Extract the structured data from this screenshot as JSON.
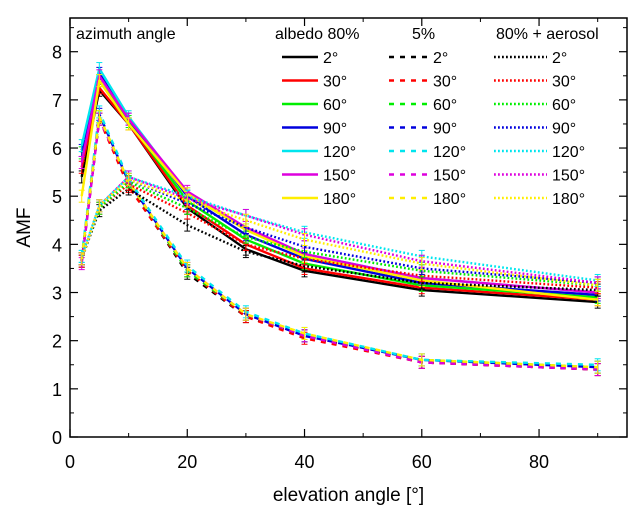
{
  "chart_data": {
    "type": "line",
    "xlabel": "elevation angle [°]",
    "ylabel": "AMF",
    "xlim": [
      0,
      95
    ],
    "ylim": [
      0,
      8.7
    ],
    "x_ticks": [
      0,
      20,
      40,
      60,
      80
    ],
    "y_ticks": [
      0,
      1,
      2,
      3,
      4,
      5,
      6,
      7,
      8
    ],
    "grid": false,
    "legend_placement": "top-right",
    "x": [
      2,
      5,
      10,
      20,
      30,
      40,
      60,
      90
    ],
    "legend": {
      "title": "azimuth angle",
      "group_headers": [
        "albedo 80%",
        "5%",
        "80% + aerosol"
      ],
      "azimuth_labels": [
        "2°",
        "30°",
        "60°",
        "90°",
        "120°",
        "150°",
        "180°"
      ]
    },
    "colors": [
      "#000000",
      "#ff0000",
      "#00ee00",
      "#0000dd",
      "#00e5ee",
      "#dd00dd",
      "#ffee00"
    ],
    "groups": [
      {
        "name": "albedo 80%",
        "line_style": "solid",
        "series": [
          {
            "name": "2°",
            "values": [
              5.4,
              7.2,
              6.5,
              4.75,
              3.9,
              3.45,
              3.05,
              2.8
            ]
          },
          {
            "name": "30°",
            "values": [
              5.6,
              7.25,
              6.5,
              4.8,
              4.0,
              3.5,
              3.1,
              2.85
            ]
          },
          {
            "name": "60°",
            "values": [
              5.9,
              7.4,
              6.55,
              4.9,
              4.1,
              3.6,
              3.15,
              2.9
            ]
          },
          {
            "name": "90°",
            "values": [
              5.95,
              7.55,
              6.6,
              5.0,
              4.2,
              3.7,
              3.2,
              2.95
            ]
          },
          {
            "name": "120°",
            "values": [
              6.05,
              7.65,
              6.65,
              5.05,
              4.3,
              3.8,
              3.3,
              3.0
            ]
          },
          {
            "name": "150°",
            "values": [
              5.7,
              7.5,
              6.6,
              5.1,
              4.35,
              3.8,
              3.3,
              3.0
            ]
          },
          {
            "name": "180°",
            "values": [
              5.0,
              7.4,
              6.5,
              5.05,
              4.3,
              3.75,
              3.25,
              2.85
            ]
          }
        ]
      },
      {
        "name": "5%",
        "line_style": "dashed",
        "series": [
          {
            "name": "2°",
            "values": [
              3.65,
              6.6,
              5.25,
              3.4,
              2.5,
              2.1,
              1.55,
              1.4
            ]
          },
          {
            "name": "30°",
            "values": [
              3.65,
              6.6,
              5.2,
              3.45,
              2.5,
              2.05,
              1.55,
              1.4
            ]
          },
          {
            "name": "60°",
            "values": [
              3.7,
              6.65,
              5.3,
              3.45,
              2.55,
              2.1,
              1.6,
              1.45
            ]
          },
          {
            "name": "90°",
            "values": [
              3.7,
              6.7,
              5.3,
              3.5,
              2.55,
              2.1,
              1.6,
              1.45
            ]
          },
          {
            "name": "120°",
            "values": [
              3.75,
              6.75,
              5.35,
              3.55,
              2.6,
              2.15,
              1.6,
              1.5
            ]
          },
          {
            "name": "150°",
            "values": [
              3.6,
              6.6,
              5.3,
              3.5,
              2.55,
              2.1,
              1.55,
              1.4
            ]
          },
          {
            "name": "180°",
            "values": [
              3.7,
              6.65,
              5.3,
              3.5,
              2.55,
              2.15,
              1.6,
              1.45
            ]
          }
        ]
      },
      {
        "name": "80% + aerosol",
        "line_style": "dotted",
        "series": [
          {
            "name": "2°",
            "values": [
              3.7,
              4.7,
              5.15,
              4.4,
              3.85,
              3.55,
              3.2,
              3.05
            ]
          },
          {
            "name": "30°",
            "values": [
              3.7,
              4.75,
              5.25,
              4.65,
              4.0,
              3.7,
              3.35,
              3.1
            ]
          },
          {
            "name": "60°",
            "values": [
              3.7,
              4.75,
              5.3,
              4.75,
              4.15,
              3.85,
              3.45,
              3.15
            ]
          },
          {
            "name": "90°",
            "values": [
              3.7,
              4.8,
              5.35,
              4.85,
              4.35,
              3.95,
              3.5,
              3.2
            ]
          },
          {
            "name": "120°",
            "values": [
              3.75,
              4.8,
              5.4,
              5.0,
              4.6,
              4.25,
              3.75,
              3.25
            ]
          },
          {
            "name": "150°",
            "values": [
              3.7,
              4.8,
              5.4,
              4.95,
              4.6,
              4.2,
              3.65,
              3.2
            ]
          },
          {
            "name": "180°",
            "values": [
              3.7,
              4.8,
              5.35,
              4.9,
              4.5,
              4.1,
              3.6,
              3.15
            ]
          }
        ]
      }
    ]
  }
}
